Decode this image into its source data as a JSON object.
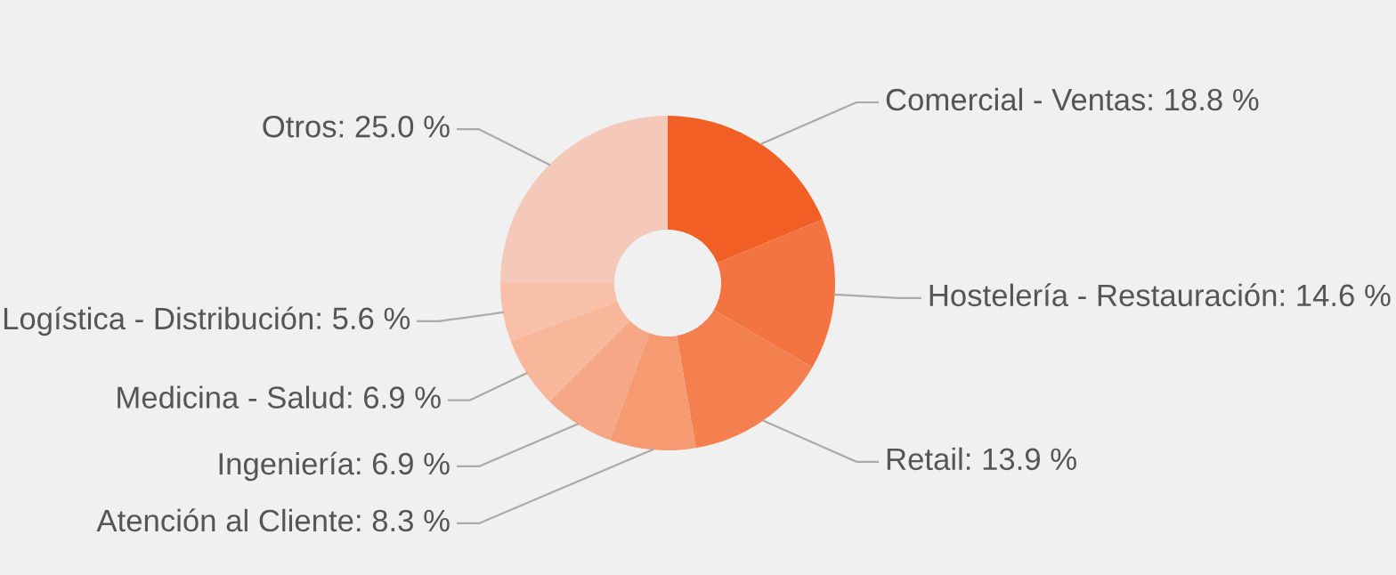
{
  "chart_data": {
    "type": "donut",
    "categories": [
      "Comercial - Ventas",
      "Hostelería - Restauración",
      "Retail",
      "Atención al Cliente",
      "Ingeniería",
      "Medicina - Salud",
      "Logística - Distribución",
      "Otros"
    ],
    "values": [
      18.8,
      14.6,
      13.9,
      8.3,
      6.9,
      6.9,
      5.6,
      25.0
    ],
    "colors": [
      "#f15f24",
      "#f37440",
      "#f4804f",
      "#f59a71",
      "#f6a785",
      "#f8b69b",
      "#f8c0a9",
      "#f5c9b9"
    ],
    "value_labels": [
      ": 18.8 %",
      ": 14.6 %",
      ": 13.9 %",
      ": 8.3 %",
      ": 6.9 %",
      ": 6.9 %",
      ": 5.6 %",
      ": 25.0 %"
    ],
    "legend": false
  }
}
